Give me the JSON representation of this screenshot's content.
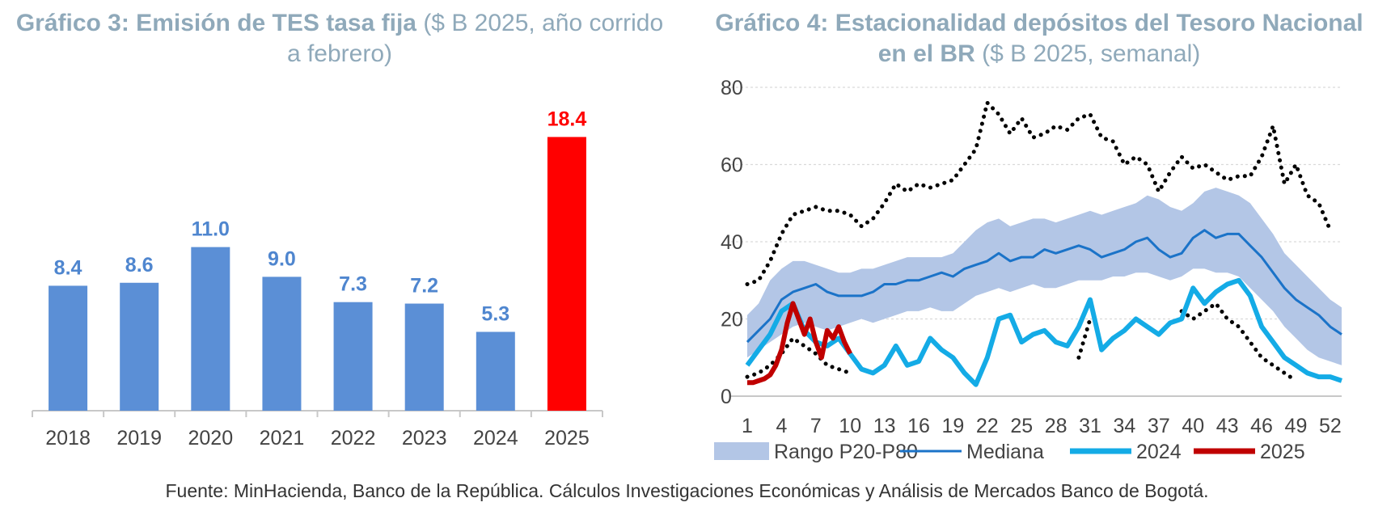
{
  "chart3": {
    "title_bold": "Gráfico 3: Emisión de TES tasa fija",
    "title_rest": "($ B 2025, año corrido a febrero)"
  },
  "chart4": {
    "title_bold": "Gráfico 4: Estacionalidad depósitos del Tesoro Nacional en el BR",
    "title_rest": "($ B 2025, semanal)"
  },
  "source": "Fuente: MinHacienda, Banco de la República. Cálculos Investigaciones Económicas y Análisis de Mercados Banco de Bogotá.",
  "colors": {
    "bar": "#5b8fd6",
    "bar_highlight": "#ff0000",
    "label": "#4f86cf",
    "label_highlight": "#ff0000",
    "band": "#b3c6e6",
    "median": "#1b73c8",
    "y2024": "#14abe6",
    "y2025": "#c00000",
    "title": "#8fa9ba"
  },
  "chart_data": [
    {
      "type": "bar",
      "categories": [
        "2018",
        "2019",
        "2020",
        "2021",
        "2022",
        "2023",
        "2024",
        "2025"
      ],
      "values": [
        8.4,
        8.6,
        11.0,
        9.0,
        7.3,
        7.2,
        5.3,
        18.4
      ],
      "data_labels": [
        "8.4",
        "8.6",
        "11.0",
        "9.0",
        "7.3",
        "7.2",
        "5.3",
        "18.4"
      ],
      "highlight_index": 7,
      "ylim": [
        0,
        20
      ]
    },
    {
      "type": "line",
      "xlim": [
        1,
        53
      ],
      "ylim": [
        0,
        80
      ],
      "x_ticks": [
        1,
        4,
        7,
        10,
        13,
        16,
        19,
        22,
        25,
        28,
        31,
        34,
        37,
        40,
        43,
        46,
        49,
        52
      ],
      "y_ticks": [
        0,
        20,
        40,
        60,
        80
      ],
      "grid": true,
      "legend_position": "bottom",
      "legend": [
        "Rango P20-P80",
        "Mediana",
        "2024",
        "2025"
      ],
      "band": {
        "name": "Rango P20-P80",
        "x": [
          1,
          2,
          3,
          4,
          5,
          6,
          7,
          8,
          9,
          10,
          11,
          12,
          13,
          14,
          15,
          16,
          17,
          18,
          19,
          20,
          21,
          22,
          23,
          24,
          25,
          26,
          27,
          28,
          29,
          30,
          31,
          32,
          33,
          34,
          35,
          36,
          37,
          38,
          39,
          40,
          41,
          42,
          43,
          44,
          45,
          46,
          47,
          48,
          49,
          50,
          51,
          52,
          53
        ],
        "low": [
          10,
          12,
          14,
          16,
          18,
          19,
          18,
          17,
          18,
          19,
          20,
          19,
          20,
          21,
          22,
          22,
          23,
          22,
          22,
          24,
          26,
          27,
          28,
          27,
          28,
          29,
          28,
          28,
          29,
          30,
          30,
          30,
          31,
          31,
          32,
          32,
          31,
          30,
          31,
          33,
          33,
          32,
          32,
          31,
          28,
          25,
          22,
          18,
          15,
          12,
          10,
          9,
          8
        ],
        "high": [
          21,
          24,
          30,
          33,
          35,
          35,
          34,
          33,
          32,
          32,
          33,
          33,
          34,
          35,
          36,
          36,
          36,
          36,
          37,
          40,
          43,
          45,
          46,
          44,
          45,
          46,
          46,
          45,
          46,
          47,
          48,
          47,
          48,
          49,
          50,
          52,
          51,
          49,
          48,
          50,
          53,
          54,
          53,
          52,
          50,
          46,
          42,
          37,
          34,
          31,
          28,
          25,
          23
        ]
      },
      "series": [
        {
          "name": "Mediana",
          "x": [
            1,
            2,
            3,
            4,
            5,
            6,
            7,
            8,
            9,
            10,
            11,
            12,
            13,
            14,
            15,
            16,
            17,
            18,
            19,
            20,
            21,
            22,
            23,
            24,
            25,
            26,
            27,
            28,
            29,
            30,
            31,
            32,
            33,
            34,
            35,
            36,
            37,
            38,
            39,
            40,
            41,
            42,
            43,
            44,
            45,
            46,
            47,
            48,
            49,
            50,
            51,
            52,
            53
          ],
          "values": [
            14,
            17,
            20,
            25,
            27,
            28,
            29,
            27,
            26,
            26,
            26,
            27,
            29,
            29,
            30,
            30,
            31,
            32,
            31,
            33,
            34,
            35,
            37,
            35,
            36,
            36,
            38,
            37,
            38,
            39,
            38,
            36,
            37,
            38,
            40,
            41,
            38,
            36,
            37,
            41,
            43,
            41,
            42,
            42,
            39,
            36,
            32,
            28,
            25,
            23,
            21,
            18,
            16
          ]
        },
        {
          "name": "2024",
          "x": [
            1,
            2,
            3,
            4,
            5,
            6,
            7,
            8,
            9,
            10,
            11,
            12,
            13,
            14,
            15,
            16,
            17,
            18,
            19,
            20,
            21,
            22,
            23,
            24,
            25,
            26,
            27,
            28,
            29,
            30,
            31,
            32,
            33,
            34,
            35,
            36,
            37,
            38,
            39,
            40,
            41,
            42,
            43,
            44,
            45,
            46,
            47,
            48,
            49,
            50,
            51,
            52,
            53
          ],
          "values": [
            8,
            12,
            16,
            22,
            24,
            17,
            14,
            13,
            15,
            11,
            7,
            6,
            8,
            13,
            8,
            9,
            15,
            12,
            10,
            6,
            3,
            10,
            20,
            21,
            14,
            16,
            17,
            14,
            13,
            18,
            25,
            12,
            15,
            17,
            20,
            18,
            16,
            19,
            20,
            28,
            24,
            27,
            29,
            30,
            26,
            18,
            14,
            10,
            8,
            6,
            5,
            5,
            4
          ]
        },
        {
          "name": "2025",
          "x": [
            1,
            1.5,
            2,
            2.5,
            3,
            3.5,
            4,
            4.5,
            5,
            5.5,
            6,
            6.5,
            7,
            7.5,
            8,
            8.5,
            9,
            9.5,
            10
          ],
          "values": [
            3.5,
            3.5,
            4,
            4.5,
            5.5,
            8,
            12,
            19,
            24,
            20,
            16,
            20,
            14,
            10,
            17,
            15,
            18,
            14,
            11
          ]
        },
        {
          "name": "P10-P90",
          "x": [
            1,
            2,
            3,
            4,
            5,
            6,
            7,
            8,
            9,
            10,
            11,
            12,
            13,
            14,
            15,
            16,
            17,
            18,
            19,
            20,
            21,
            22,
            23,
            24,
            25,
            26,
            27,
            28,
            29,
            30,
            31,
            32,
            33,
            34,
            35,
            36,
            37,
            38,
            39,
            40,
            41,
            42,
            43,
            44,
            45,
            46,
            47,
            48,
            49,
            50,
            51,
            52
          ],
          "values": [
            29,
            30,
            35,
            42,
            47,
            48,
            49,
            48,
            48,
            47,
            44,
            46,
            50,
            55,
            53,
            55,
            54,
            55,
            56,
            60,
            64,
            76,
            73,
            68,
            72,
            67,
            68,
            70,
            69,
            72,
            73,
            67,
            66,
            60,
            62,
            60,
            53,
            58,
            62,
            59,
            60,
            58,
            56,
            57,
            57,
            62,
            70,
            55,
            60,
            52,
            50,
            43
          ]
        },
        {
          "name": "P10-P90 low",
          "x": [
            1,
            2,
            3,
            4,
            5,
            6,
            7,
            8,
            9,
            10,
            11,
            12,
            13,
            14,
            15,
            16,
            17,
            18,
            19,
            20,
            21,
            22,
            23,
            24,
            25,
            26,
            27,
            28,
            29,
            30,
            31,
            32,
            33,
            34,
            35,
            36,
            37,
            38,
            39,
            40,
            41,
            42,
            43,
            44,
            45,
            46,
            47,
            48,
            49,
            50,
            51,
            52
          ],
          "values": [
            5,
            6,
            8,
            11,
            15,
            13,
            11,
            8,
            7,
            6,
            null,
            null,
            null,
            null,
            null,
            null,
            null,
            null,
            null,
            null,
            null,
            null,
            null,
            null,
            null,
            null,
            null,
            null,
            null,
            10,
            20,
            null,
            null,
            null,
            null,
            null,
            null,
            null,
            22,
            20,
            22,
            24,
            20,
            18,
            14,
            10,
            8,
            6,
            4,
            null,
            null,
            null
          ]
        }
      ]
    }
  ]
}
